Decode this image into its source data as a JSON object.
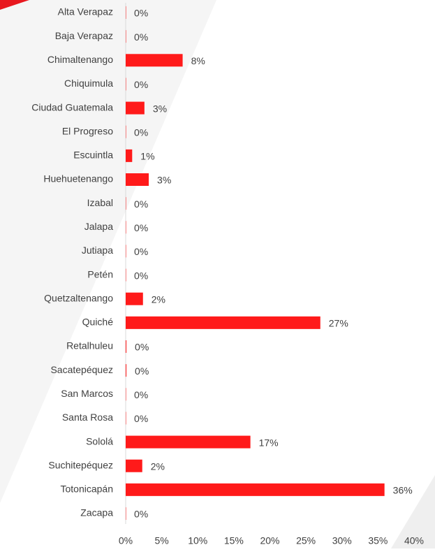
{
  "chart_data": {
    "type": "bar",
    "orientation": "horizontal",
    "categories": [
      "Alta Verapaz",
      "Baja Verapaz",
      "Chimaltenango",
      "Chiquimula",
      "Ciudad Guatemala",
      "El Progreso",
      "Escuintla",
      "Huehuetenango",
      "Izabal",
      "Jalapa",
      "Jutiapa",
      "Petén",
      "Quetzaltenango",
      "Quiché",
      "Retalhuleu",
      "Sacatepéquez",
      "San Marcos",
      "Santa Rosa",
      "Sololá",
      "Suchitepéquez",
      "Totonicapán",
      "Zacapa"
    ],
    "values": [
      0,
      0,
      7.9,
      0,
      2.6,
      0,
      0.9,
      3.2,
      0,
      0,
      0,
      0,
      2.4,
      27.0,
      0.1,
      0.1,
      0,
      0,
      17.3,
      2.3,
      35.9,
      0
    ],
    "value_labels": [
      "0%",
      "0%",
      "8%",
      "0%",
      "3%",
      "0%",
      "1%",
      "3%",
      "0%",
      "0%",
      "0%",
      "0%",
      "2%",
      "27%",
      "0%",
      "0%",
      "0%",
      "0%",
      "17%",
      "2%",
      "36%",
      "0%"
    ],
    "color": "#ff1a1a",
    "xlim": [
      0,
      40
    ],
    "xticks": [
      {
        "value": 0,
        "label": "0%"
      },
      {
        "value": 5,
        "label": "5%"
      },
      {
        "value": 10,
        "label": "10%"
      },
      {
        "value": 15,
        "label": "15%"
      },
      {
        "value": 20,
        "label": "20%"
      },
      {
        "value": 25,
        "label": "25%"
      },
      {
        "value": 30,
        "label": "30%"
      },
      {
        "value": 35,
        "label": "35%"
      },
      {
        "value": 40,
        "label": "40%"
      }
    ],
    "grid": false
  }
}
